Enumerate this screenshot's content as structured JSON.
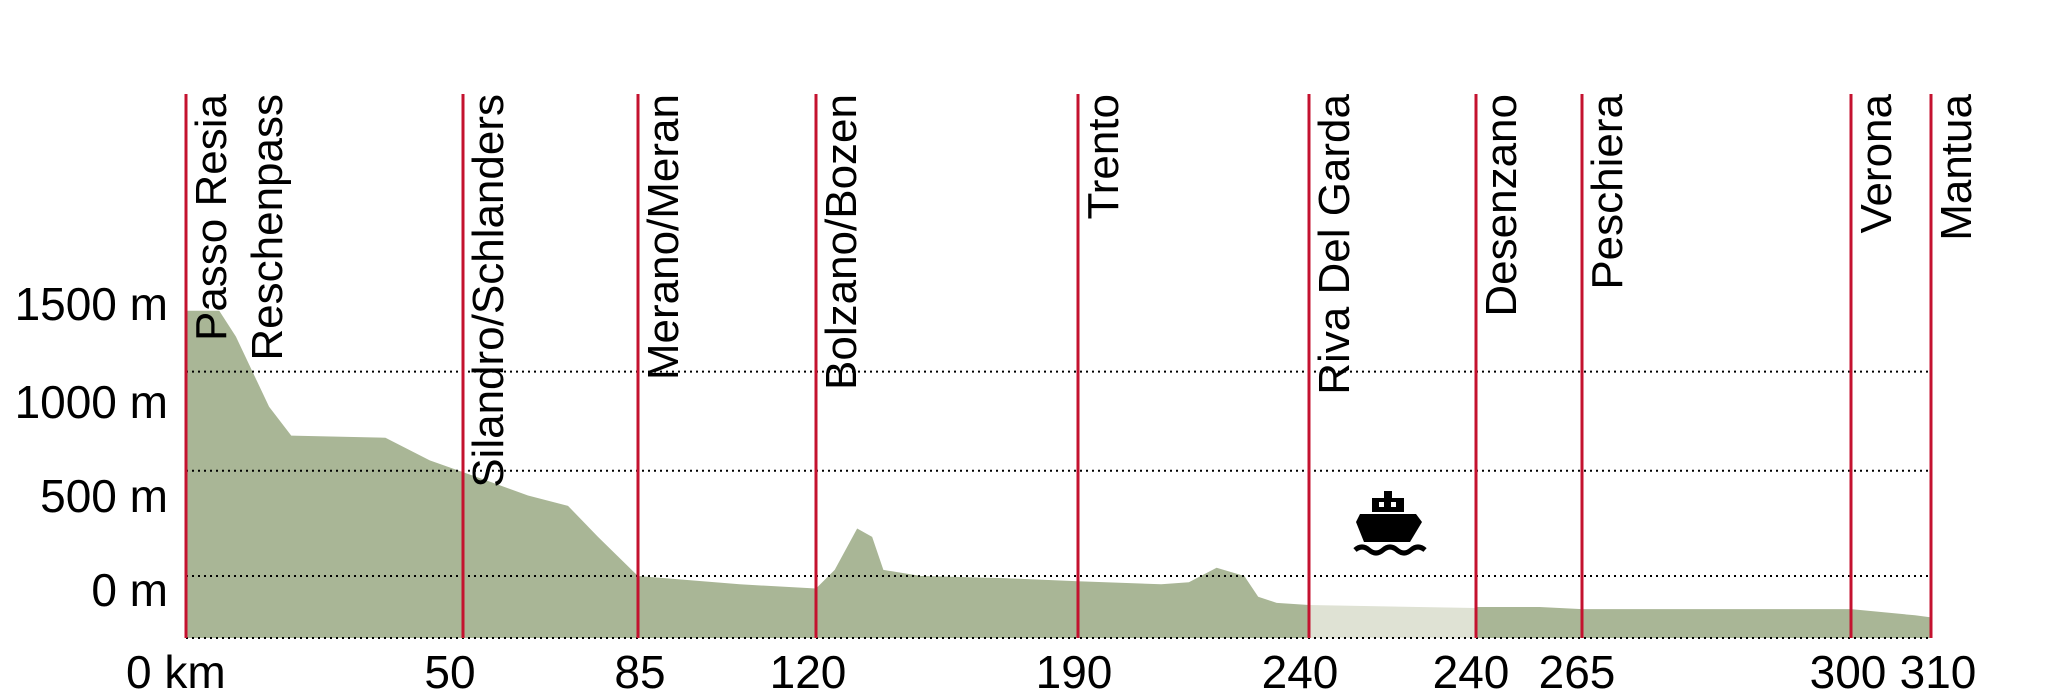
{
  "chart_data": {
    "type": "area",
    "title": "",
    "xlabel": "",
    "ylabel": "",
    "xlim": [
      0,
      310
    ],
    "ylim": [
      0,
      1500
    ],
    "y_ticks": [
      {
        "value": 0,
        "label": "0 m"
      },
      {
        "value": 500,
        "label": "500 m"
      },
      {
        "value": 1000,
        "label": "1000 m"
      },
      {
        "value": 1500,
        "label": "1500 m"
      }
    ],
    "gridlines": [
      0,
      300,
      810,
      1290
    ],
    "x_ticks": [
      "0 km",
      "50",
      "85",
      "120",
      "190",
      "240",
      "240",
      "265",
      "300",
      "310"
    ],
    "places": [
      {
        "name": "Passo Resia",
        "km": 0
      },
      {
        "name": "Reschenpass",
        "km": 0
      },
      {
        "name": "Silandro/Schlanders",
        "km": 50
      },
      {
        "name": "Merano/Meran",
        "km": 85
      },
      {
        "name": "Bolzano/Bozen",
        "km": 120
      },
      {
        "name": "Trento",
        "km": 190
      },
      {
        "name": "Riva Del Garda",
        "km": 240
      },
      {
        "name": "Desenzano",
        "km": 240
      },
      {
        "name": "Peschiera",
        "km": 265
      },
      {
        "name": "Verona",
        "km": 300
      },
      {
        "name": "Mantua",
        "km": 310
      }
    ],
    "series": [
      {
        "segment": "road",
        "points": [
          [
            0,
            1585
          ],
          [
            6,
            1585
          ],
          [
            9,
            1460
          ],
          [
            15,
            1120
          ],
          [
            19,
            980
          ],
          [
            36,
            970
          ],
          [
            44,
            860
          ],
          [
            55,
            760
          ],
          [
            63,
            690
          ],
          [
            71,
            640
          ],
          [
            77,
            490
          ],
          [
            85,
            300
          ],
          [
            105,
            260
          ],
          [
            120,
            240
          ],
          [
            125,
            330
          ],
          [
            131,
            530
          ],
          [
            135,
            490
          ],
          [
            138,
            330
          ],
          [
            148,
            300
          ],
          [
            170,
            290
          ],
          [
            190,
            275
          ],
          [
            208,
            260
          ],
          [
            214,
            270
          ],
          [
            220,
            340
          ],
          [
            226,
            300
          ],
          [
            229,
            200
          ],
          [
            233,
            170
          ],
          [
            240,
            160
          ]
        ]
      },
      {
        "segment": "ferry",
        "points": [
          [
            240,
            160
          ],
          [
            270,
            145
          ],
          [
            270,
            0
          ],
          [
            240,
            0
          ]
        ]
      },
      {
        "segment": "road",
        "points": [
          [
            240,
            150
          ],
          [
            255,
            150
          ],
          [
            265,
            140
          ],
          [
            280,
            140
          ],
          [
            300,
            140
          ],
          [
            308,
            110
          ],
          [
            310,
            100
          ]
        ]
      }
    ],
    "colors": {
      "road_fill": "#a9b696",
      "ferry_fill": "#dfe2d4",
      "marker_line": "#c4122f",
      "grid": "#000000"
    },
    "icon": "ferry-boat-icon"
  }
}
